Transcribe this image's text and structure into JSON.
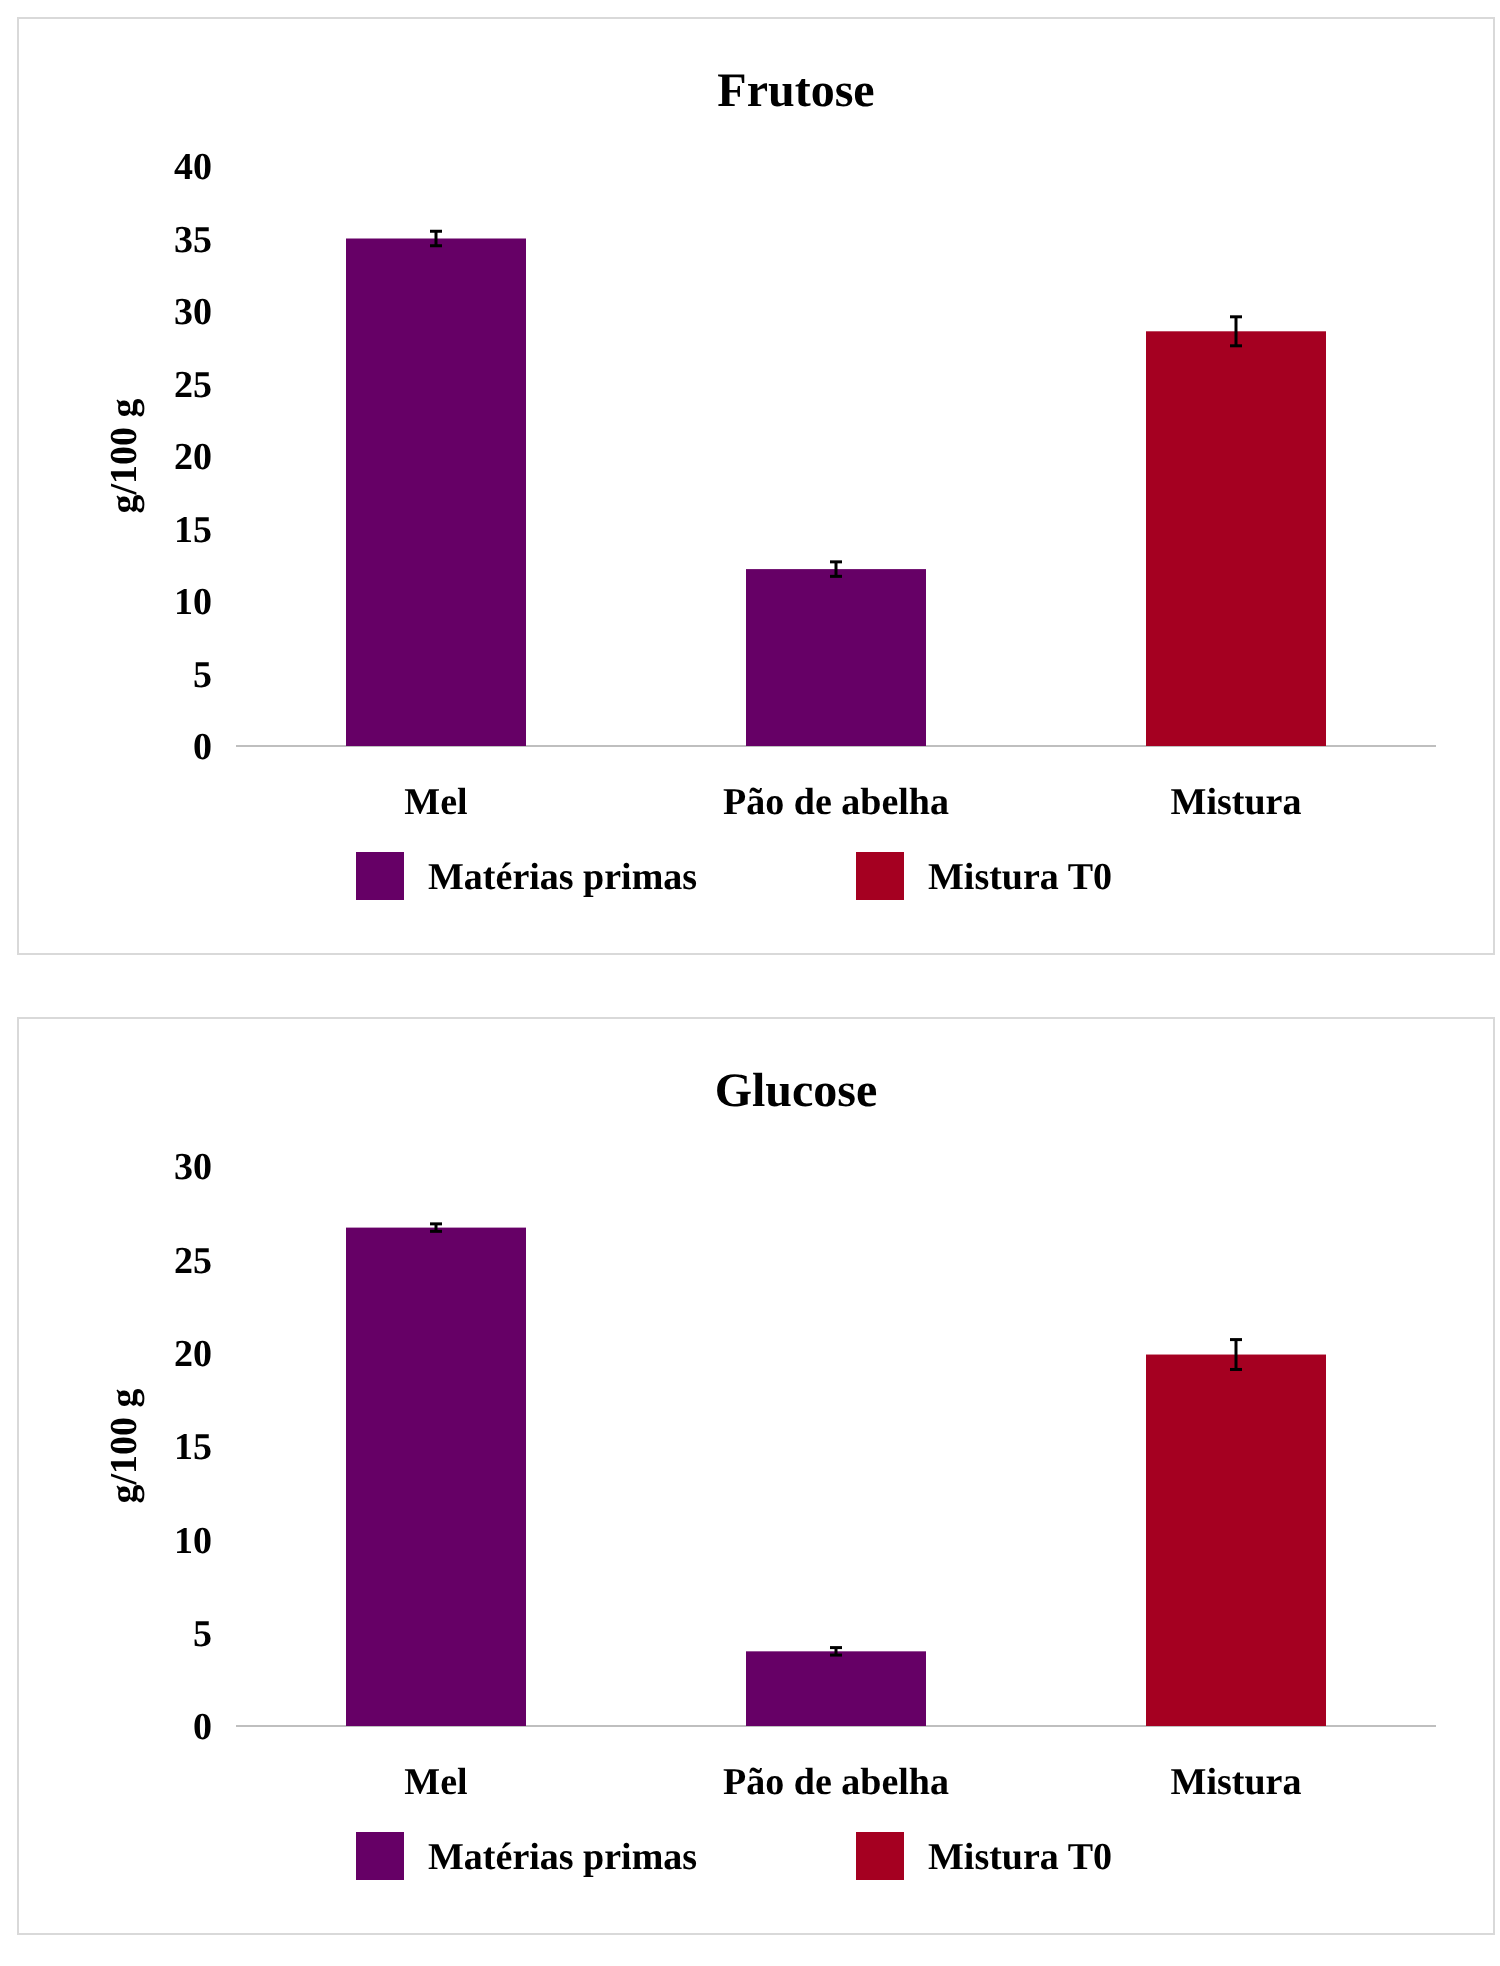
{
  "chart_data": [
    {
      "type": "bar",
      "title": "Frutose",
      "ylabel": "g/100 g",
      "categories": [
        "Mel",
        "Pão de abelha",
        "Mistura"
      ],
      "ylim": [
        0,
        40
      ],
      "yticks": [
        0,
        5,
        10,
        15,
        20,
        25,
        30,
        35,
        40
      ],
      "grid": false,
      "legend": "bottom",
      "series": [
        {
          "name": "Matérias primas",
          "color": "#660066",
          "values": [
            35,
            12.2,
            null
          ],
          "errors": [
            0.5,
            0.5,
            null
          ]
        },
        {
          "name": "Mistura T0",
          "color": "#a50021",
          "values": [
            null,
            null,
            28.6
          ],
          "errors": [
            null,
            null,
            1
          ]
        }
      ]
    },
    {
      "type": "bar",
      "title": "Glucose",
      "ylabel": "g/100 g",
      "categories": [
        "Mel",
        "Pão de abelha",
        "Mistura"
      ],
      "ylim": [
        0,
        30
      ],
      "yticks": [
        0,
        5,
        10,
        15,
        20,
        25,
        30
      ],
      "grid": false,
      "legend": "bottom",
      "series": [
        {
          "name": "Matérias primas",
          "color": "#660066",
          "values": [
            26.7,
            4,
            null
          ],
          "errors": [
            0.2,
            0.2,
            null
          ]
        },
        {
          "name": "Mistura T0",
          "color": "#a50021",
          "values": [
            null,
            null,
            19.9
          ],
          "errors": [
            null,
            null,
            0.8
          ]
        }
      ]
    }
  ]
}
